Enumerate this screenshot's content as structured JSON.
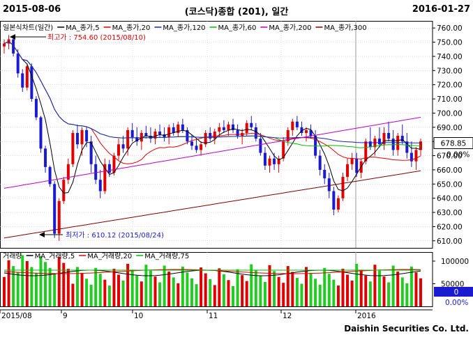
{
  "header": {
    "start_date": "2015-08-06",
    "title": "(코스닥)종합 (201), 일간",
    "end_date": "2016-01-27"
  },
  "price_legend": [
    {
      "label": "일본식차트(일간)",
      "color": "#000000"
    },
    {
      "label": "MA_종가,5",
      "color": "#000000"
    },
    {
      "label": "MA_종가,20",
      "color": "#e00000"
    },
    {
      "label": "MA_종가,120",
      "color": "#2020c0"
    },
    {
      "label": "MA_종가,60",
      "color": "#00c000"
    },
    {
      "label": "MA_종가,200",
      "color": "#c000c0"
    },
    {
      "label": "MA_종가,300",
      "color": "#800000"
    }
  ],
  "volume_legend": [
    {
      "label": "거래량",
      "color": "#000000"
    },
    {
      "label": "MA_거래량,5",
      "color": "#000000"
    },
    {
      "label": "MA_거래량,20",
      "color": "#e00000"
    },
    {
      "label": "MA_거래량,75",
      "color": "#00c000"
    }
  ],
  "annotations": {
    "high": "최고가 : 754.60 (2015/08/10)",
    "low": "최저가 : 610.12 (2015/08/24)"
  },
  "price_axis": {
    "ticks": [
      "760.00",
      "750.00",
      "740.00",
      "730.00",
      "720.00",
      "710.00",
      "700.00",
      "690.00",
      "680.00",
      "670.00",
      "660.00",
      "650.00",
      "640.00",
      "630.00",
      "620.00",
      "610.00"
    ],
    "current_value": "678.85",
    "change": "0.00%"
  },
  "volume_axis": {
    "ticks": [
      "100000",
      "50000"
    ],
    "current_value": "0",
    "change": "0.00%"
  },
  "x_axis": {
    "labels": [
      "2015/08",
      "9",
      "10",
      "11",
      "12",
      "2016"
    ]
  },
  "footer": {
    "brand": "Daishin Securities Co. Ltd."
  },
  "colors": {
    "up": "#e00000",
    "down": "#1a1ad0",
    "volume_up": "#e00000",
    "volume_down": "#22cc22",
    "grid": "#c0c0c0"
  },
  "chart_data": {
    "type": "candlestick",
    "x": "trading days 2015-08-06 to 2016-01-27",
    "ylim": [
      605,
      765
    ],
    "ohlc": [
      [
        747,
        752,
        742,
        749
      ],
      [
        749,
        755,
        745,
        752
      ],
      [
        752,
        754,
        740,
        742
      ],
      [
        742,
        745,
        725,
        728
      ],
      [
        728,
        731,
        715,
        718
      ],
      [
        718,
        735,
        716,
        733
      ],
      [
        733,
        735,
        708,
        710
      ],
      [
        710,
        712,
        695,
        697
      ],
      [
        697,
        698,
        672,
        675
      ],
      [
        675,
        677,
        658,
        662
      ],
      [
        662,
        663,
        648,
        650
      ],
      [
        650,
        652,
        612,
        615
      ],
      [
        615,
        640,
        610,
        638
      ],
      [
        638,
        655,
        636,
        653
      ],
      [
        653,
        668,
        650,
        664
      ],
      [
        664,
        688,
        662,
        686
      ],
      [
        686,
        692,
        675,
        678
      ],
      [
        678,
        690,
        670,
        688
      ],
      [
        688,
        690,
        676,
        680
      ],
      [
        680,
        684,
        658,
        664
      ],
      [
        664,
        670,
        650,
        653
      ],
      [
        653,
        660,
        640,
        645
      ],
      [
        645,
        668,
        643,
        664
      ],
      [
        664,
        667,
        655,
        658
      ],
      [
        658,
        672,
        656,
        670
      ],
      [
        670,
        682,
        667,
        678
      ],
      [
        678,
        684,
        672,
        675
      ],
      [
        675,
        690,
        670,
        688
      ],
      [
        688,
        693,
        680,
        683
      ],
      [
        683,
        690,
        677,
        680
      ],
      [
        680,
        688,
        674,
        686
      ],
      [
        686,
        691,
        682,
        684
      ],
      [
        684,
        690,
        679,
        682
      ],
      [
        682,
        689,
        678,
        687
      ],
      [
        687,
        692,
        683,
        685
      ],
      [
        685,
        690,
        680,
        683
      ],
      [
        683,
        692,
        678,
        690
      ],
      [
        690,
        693,
        684,
        686
      ],
      [
        686,
        694,
        683,
        692
      ],
      [
        692,
        696,
        686,
        688
      ],
      [
        688,
        690,
        678,
        680
      ],
      [
        680,
        685,
        674,
        677
      ],
      [
        677,
        682,
        672,
        674
      ],
      [
        674,
        680,
        670,
        678
      ],
      [
        678,
        688,
        676,
        686
      ],
      [
        686,
        690,
        680,
        682
      ],
      [
        682,
        689,
        678,
        687
      ],
      [
        687,
        693,
        683,
        690
      ],
      [
        690,
        695,
        686,
        688
      ],
      [
        688,
        694,
        684,
        692
      ],
      [
        692,
        696,
        686,
        688
      ],
      [
        688,
        692,
        682,
        684
      ],
      [
        684,
        689,
        678,
        686
      ],
      [
        686,
        695,
        684,
        693
      ],
      [
        693,
        698,
        688,
        690
      ],
      [
        690,
        693,
        680,
        682
      ],
      [
        682,
        686,
        670,
        672
      ],
      [
        672,
        676,
        660,
        663
      ],
      [
        663,
        670,
        658,
        668
      ],
      [
        668,
        672,
        660,
        664
      ],
      [
        664,
        670,
        658,
        668
      ],
      [
        668,
        683,
        666,
        680
      ],
      [
        680,
        690,
        677,
        688
      ],
      [
        688,
        696,
        684,
        694
      ],
      [
        694,
        698,
        688,
        690
      ],
      [
        690,
        694,
        684,
        686
      ],
      [
        686,
        690,
        680,
        688
      ],
      [
        688,
        692,
        682,
        684
      ],
      [
        684,
        688,
        668,
        670
      ],
      [
        670,
        674,
        656,
        660
      ],
      [
        660,
        664,
        650,
        654
      ],
      [
        654,
        658,
        640,
        645
      ],
      [
        645,
        648,
        628,
        632
      ],
      [
        632,
        642,
        630,
        640
      ],
      [
        640,
        658,
        638,
        655
      ],
      [
        655,
        668,
        652,
        664
      ],
      [
        664,
        672,
        660,
        668
      ],
      [
        668,
        672,
        655,
        658
      ],
      [
        658,
        668,
        654,
        666
      ],
      [
        666,
        682,
        664,
        680
      ],
      [
        680,
        690,
        674,
        676
      ],
      [
        676,
        684,
        670,
        682
      ],
      [
        682,
        690,
        676,
        678
      ],
      [
        678,
        690,
        674,
        686
      ],
      [
        686,
        694,
        680,
        682
      ],
      [
        682,
        688,
        670,
        674
      ],
      [
        674,
        686,
        670,
        684
      ],
      [
        684,
        692,
        678,
        680
      ],
      [
        680,
        686,
        668,
        672
      ],
      [
        672,
        680,
        662,
        666
      ],
      [
        666,
        676,
        660,
        674
      ],
      [
        674,
        682,
        670,
        680
      ]
    ],
    "price_labels": {
      "high": 754.6,
      "low": 610.12,
      "last": 678.85
    }
  }
}
